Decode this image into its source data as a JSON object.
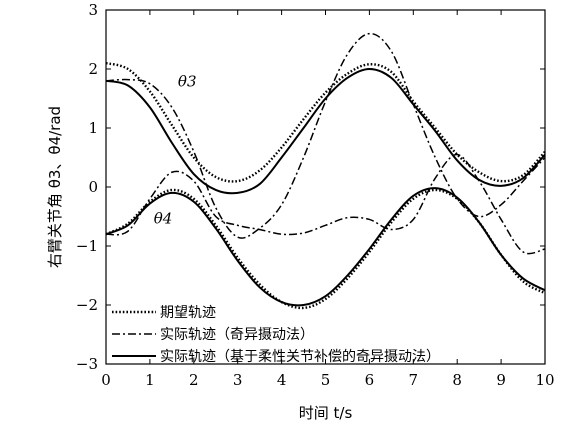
{
  "chart_data": {
    "type": "line",
    "xlabel": "时间 t/s",
    "ylabel": "右臂关节角 θ3、θ4/rad",
    "xlim": [
      0,
      10
    ],
    "ylim": [
      -3,
      3
    ],
    "xticks": [
      "0",
      "1",
      "2",
      "3",
      "4",
      "5",
      "6",
      "7",
      "8",
      "9",
      "10"
    ],
    "yticks": [
      "3",
      "2",
      "1",
      "0",
      "−1",
      "−2",
      "−3"
    ],
    "grid": false,
    "legend_position": "bottom-left",
    "annotations": [
      {
        "text": "θ3",
        "x": 1.85,
        "y": 1.7
      },
      {
        "text": "θ4",
        "x": 1.3,
        "y": -0.62
      }
    ],
    "series": [
      {
        "name": "期望轨迹",
        "style": "dotted",
        "curves": [
          {
            "label": "θ3",
            "x": [
              0,
              0.5,
              1,
              1.5,
              2,
              2.5,
              3,
              3.5,
              4,
              4.5,
              5,
              5.5,
              6,
              6.5,
              7,
              7.5,
              8,
              8.5,
              9,
              9.5,
              10
            ],
            "y": [
              2.1,
              2.0,
              1.62,
              1.05,
              0.5,
              0.17,
              0.1,
              0.28,
              0.67,
              1.15,
              1.6,
              1.92,
              2.08,
              1.95,
              1.45,
              1.0,
              0.55,
              0.25,
              0.1,
              0.2,
              0.6
            ]
          },
          {
            "label": "θ4",
            "x": [
              0,
              0.5,
              1,
              1.5,
              2,
              2.5,
              3,
              3.5,
              4,
              4.5,
              5,
              5.5,
              6,
              6.5,
              7,
              7.5,
              8,
              8.5,
              9,
              9.5,
              10
            ],
            "y": [
              -0.8,
              -0.62,
              -0.25,
              -0.05,
              -0.2,
              -0.65,
              -1.2,
              -1.65,
              -1.95,
              -2.05,
              -1.9,
              -1.55,
              -1.1,
              -0.6,
              -0.2,
              -0.05,
              -0.2,
              -0.6,
              -1.15,
              -1.6,
              -1.8
            ]
          }
        ]
      },
      {
        "name": "实际轨迹（奇异摄动法）",
        "style": "dash-dot",
        "curves": [
          {
            "label": "θ3",
            "x": [
              0,
              0.5,
              1,
              1.5,
              2,
              2.5,
              3,
              3.5,
              4,
              4.5,
              5,
              5.5,
              6,
              6.5,
              7,
              7.5,
              8,
              8.5,
              9,
              9.5,
              10
            ],
            "y": [
              1.8,
              1.82,
              1.75,
              1.35,
              0.6,
              -0.35,
              -0.85,
              -0.7,
              -0.3,
              0.5,
              1.45,
              2.25,
              2.6,
              2.3,
              1.4,
              0.5,
              -0.2,
              -0.5,
              -0.3,
              0.1,
              0.5
            ]
          },
          {
            "label": "θ4",
            "x": [
              0,
              0.5,
              1,
              1.5,
              2,
              2.5,
              3,
              3.5,
              4,
              4.5,
              5,
              5.5,
              6,
              6.5,
              7,
              7.5,
              8,
              8.5,
              9,
              9.5,
              10
            ],
            "y": [
              -0.8,
              -0.75,
              -0.2,
              0.25,
              0.1,
              -0.5,
              -0.65,
              -0.72,
              -0.8,
              -0.78,
              -0.65,
              -0.52,
              -0.55,
              -0.72,
              -0.55,
              0.15,
              0.55,
              0.1,
              -0.55,
              -1.1,
              -1.05
            ]
          }
        ]
      },
      {
        "name": "实际轨迹（基于柔性关节补偿的奇异摄动法）",
        "style": "solid",
        "curves": [
          {
            "label": "θ3",
            "x": [
              0,
              0.5,
              1,
              1.5,
              2,
              2.5,
              3,
              3.5,
              4,
              4.5,
              5,
              5.5,
              6,
              6.5,
              7,
              7.5,
              8,
              8.5,
              9,
              9.5,
              10
            ],
            "y": [
              1.8,
              1.72,
              1.35,
              0.75,
              0.22,
              -0.05,
              -0.1,
              0.05,
              0.5,
              1.0,
              1.5,
              1.85,
              2.0,
              1.85,
              1.4,
              0.95,
              0.45,
              0.12,
              0.02,
              0.15,
              0.55
            ]
          },
          {
            "label": "θ4",
            "x": [
              0,
              0.5,
              1,
              1.5,
              2,
              2.5,
              3,
              3.5,
              4,
              4.5,
              5,
              5.5,
              6,
              6.5,
              7,
              7.5,
              8,
              8.5,
              9,
              9.5,
              10
            ],
            "y": [
              -0.8,
              -0.65,
              -0.28,
              -0.1,
              -0.25,
              -0.7,
              -1.25,
              -1.7,
              -1.95,
              -2.0,
              -1.85,
              -1.5,
              -1.05,
              -0.55,
              -0.15,
              -0.02,
              -0.18,
              -0.6,
              -1.15,
              -1.55,
              -1.75
            ]
          }
        ]
      }
    ]
  }
}
